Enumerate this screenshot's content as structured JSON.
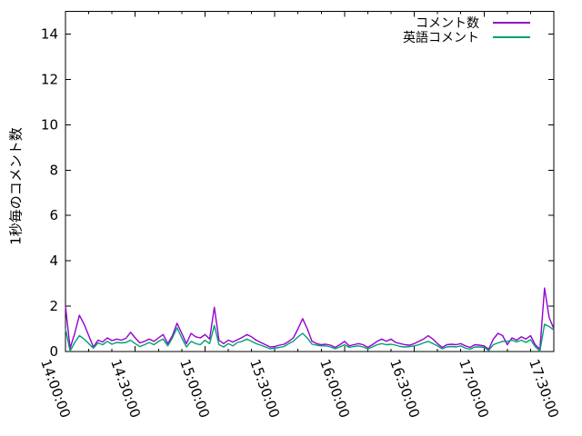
{
  "colors": {
    "background": "#ffffff",
    "foreground": "#000000",
    "series1": "#9400d3",
    "series2": "#009e73"
  },
  "chart_data": {
    "type": "line",
    "title": "",
    "xlabel": "",
    "ylabel": "1秒毎のコメント数",
    "ylim": [
      0,
      15
    ],
    "yticks": [
      0,
      2,
      4,
      6,
      8,
      10,
      12,
      14
    ],
    "xtick_labels": [
      "14:00:00",
      "14:30:00",
      "15:00:00",
      "15:30:00",
      "16:00:00",
      "16:30:00",
      "17:00:00",
      "17:30:00"
    ],
    "x_major_tick_minutes": 30,
    "x_minor_tick_minutes": 10,
    "grid": false,
    "legend_position": "top-right-inside",
    "x": [
      "14:00:00",
      "14:02:00",
      "14:04:00",
      "14:06:00",
      "14:08:00",
      "14:10:00",
      "14:12:00",
      "14:14:00",
      "14:16:00",
      "14:18:00",
      "14:20:00",
      "14:22:00",
      "14:24:00",
      "14:26:00",
      "14:28:00",
      "14:30:00",
      "14:32:00",
      "14:34:00",
      "14:36:00",
      "14:38:00",
      "14:40:00",
      "14:42:00",
      "14:44:00",
      "14:46:00",
      "14:48:00",
      "14:50:00",
      "14:52:00",
      "14:54:00",
      "14:56:00",
      "14:58:00",
      "15:00:00",
      "15:02:00",
      "15:04:00",
      "15:06:00",
      "15:08:00",
      "15:10:00",
      "15:12:00",
      "15:14:00",
      "15:16:00",
      "15:18:00",
      "15:20:00",
      "15:22:00",
      "15:24:00",
      "15:26:00",
      "15:28:00",
      "15:30:00",
      "15:32:00",
      "15:34:00",
      "15:36:00",
      "15:38:00",
      "15:40:00",
      "15:42:00",
      "15:44:00",
      "15:46:00",
      "15:48:00",
      "15:50:00",
      "15:52:00",
      "15:54:00",
      "15:56:00",
      "15:58:00",
      "16:00:00",
      "16:02:00",
      "16:04:00",
      "16:06:00",
      "16:08:00",
      "16:10:00",
      "16:12:00",
      "16:14:00",
      "16:16:00",
      "16:18:00",
      "16:20:00",
      "16:22:00",
      "16:24:00",
      "16:26:00",
      "16:28:00",
      "16:30:00",
      "16:32:00",
      "16:34:00",
      "16:36:00",
      "16:38:00",
      "16:40:00",
      "16:42:00",
      "16:44:00",
      "16:46:00",
      "16:48:00",
      "16:50:00",
      "16:52:00",
      "16:54:00",
      "16:56:00",
      "16:58:00",
      "17:00:00",
      "17:02:00",
      "17:04:00",
      "17:06:00",
      "17:08:00",
      "17:10:00",
      "17:12:00",
      "17:14:00",
      "17:16:00",
      "17:18:00",
      "17:20:00",
      "17:22:00",
      "17:24:00",
      "17:26:00",
      "17:28:00",
      "17:30:00"
    ],
    "series": [
      {
        "name": "コメント数",
        "color": "#9400d3",
        "values": [
          2.0,
          0.15,
          0.8,
          1.6,
          1.2,
          0.7,
          0.2,
          0.5,
          0.42,
          0.6,
          0.48,
          0.55,
          0.5,
          0.58,
          0.85,
          0.6,
          0.38,
          0.45,
          0.55,
          0.45,
          0.6,
          0.75,
          0.35,
          0.7,
          1.25,
          0.8,
          0.35,
          0.8,
          0.65,
          0.6,
          0.75,
          0.55,
          1.95,
          0.5,
          0.35,
          0.5,
          0.42,
          0.52,
          0.62,
          0.75,
          0.65,
          0.5,
          0.4,
          0.3,
          0.2,
          0.22,
          0.28,
          0.32,
          0.45,
          0.6,
          1.0,
          1.45,
          1.0,
          0.45,
          0.35,
          0.3,
          0.32,
          0.28,
          0.18,
          0.3,
          0.45,
          0.25,
          0.3,
          0.35,
          0.3,
          0.18,
          0.3,
          0.45,
          0.55,
          0.45,
          0.55,
          0.4,
          0.35,
          0.3,
          0.28,
          0.35,
          0.45,
          0.55,
          0.7,
          0.55,
          0.35,
          0.18,
          0.3,
          0.32,
          0.3,
          0.35,
          0.25,
          0.18,
          0.3,
          0.28,
          0.25,
          0.1,
          0.55,
          0.8,
          0.7,
          0.3,
          0.6,
          0.5,
          0.65,
          0.55,
          0.7,
          0.3,
          0.1,
          2.8,
          1.5,
          1.0
        ]
      },
      {
        "name": "英語コメント",
        "color": "#009e73",
        "values": [
          1.0,
          0.02,
          0.4,
          0.7,
          0.55,
          0.35,
          0.15,
          0.38,
          0.3,
          0.45,
          0.32,
          0.4,
          0.38,
          0.4,
          0.5,
          0.35,
          0.22,
          0.3,
          0.4,
          0.3,
          0.45,
          0.55,
          0.25,
          0.6,
          1.05,
          0.6,
          0.2,
          0.45,
          0.35,
          0.3,
          0.5,
          0.35,
          1.15,
          0.3,
          0.2,
          0.35,
          0.25,
          0.4,
          0.45,
          0.55,
          0.45,
          0.35,
          0.28,
          0.2,
          0.12,
          0.15,
          0.18,
          0.22,
          0.35,
          0.45,
          0.65,
          0.8,
          0.6,
          0.32,
          0.28,
          0.25,
          0.25,
          0.2,
          0.12,
          0.2,
          0.3,
          0.18,
          0.22,
          0.25,
          0.2,
          0.12,
          0.2,
          0.3,
          0.35,
          0.3,
          0.32,
          0.28,
          0.22,
          0.2,
          0.22,
          0.25,
          0.3,
          0.38,
          0.45,
          0.35,
          0.25,
          0.12,
          0.2,
          0.22,
          0.2,
          0.25,
          0.15,
          0.1,
          0.2,
          0.2,
          0.18,
          0.05,
          0.3,
          0.38,
          0.45,
          0.45,
          0.5,
          0.42,
          0.5,
          0.4,
          0.52,
          0.22,
          0.02,
          1.2,
          1.1,
          0.95
        ]
      }
    ]
  }
}
